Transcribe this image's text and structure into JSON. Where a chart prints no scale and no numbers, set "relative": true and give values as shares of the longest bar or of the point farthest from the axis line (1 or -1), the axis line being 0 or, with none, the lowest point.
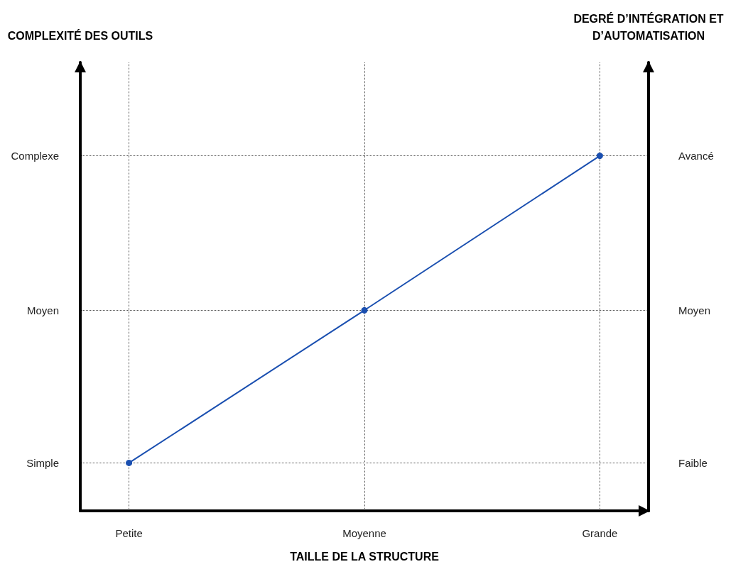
{
  "chart_data": {
    "type": "line",
    "relative": true,
    "xlabel": "TAILLE DE LA STRUCTURE",
    "annotations": [
      "COMPLEXITÉ DES OUTILS",
      "DEGRÉ D’INTÉGRATION ET D’AUTOMATISATION"
    ],
    "categories": [
      "Petite",
      "Moyenne",
      "Grande"
    ],
    "y_categories": [
      "Complexe",
      "Moyen",
      "Simple"
    ],
    "y2_categories": [
      "Avancé",
      "Moyen",
      "Faible"
    ],
    "series": [
      {
        "color": "#1a4fb0",
        "values": [
          0.135,
          0.565,
          1
        ]
      }
    ],
    "grid": true,
    "marker": "circle",
    "line_style": "solid"
  }
}
